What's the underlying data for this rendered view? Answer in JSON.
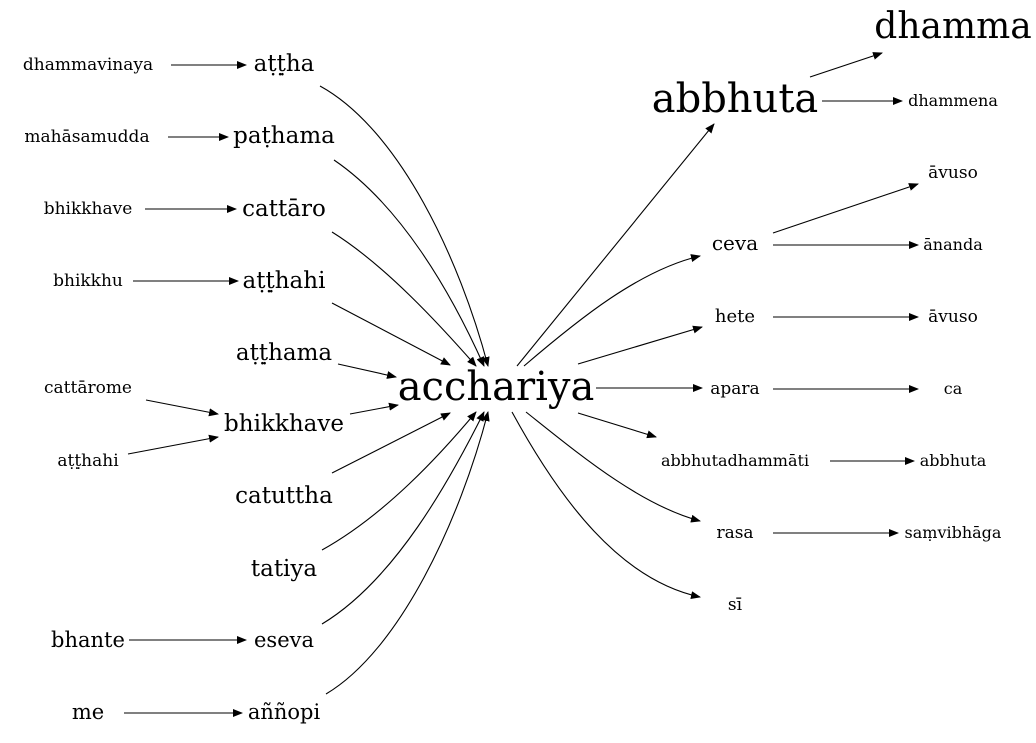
{
  "nodes": {
    "dhammavinaya": "dhammavinaya",
    "attha": "aṭṭ̣ha",
    "mahasamudda": "mahāsamudda",
    "pathama": "paṭhama",
    "bhikkhave_l": "bhikkhave",
    "cattaro": "cattāro",
    "bhikkhu": "bhikkhu",
    "atthahi": "aṭṭ̣hahi",
    "atthama": "aṭṭ̣hama",
    "cattarome": "cattārome",
    "atthahi2": "aṭṭ̣hahi",
    "bhikkhave_c": "bhikkhave",
    "catuttha": "catuttha",
    "tatiya": "tatiya",
    "bhante": "bhante",
    "eseva": "eseva",
    "me": "me",
    "annopi": "aññopi",
    "acchariya": "acchariya",
    "abbhuta": "abbhuta",
    "dhamma": "dhamma",
    "dhammena": "dhammena",
    "ceva": "ceva",
    "avuso1": "āvuso",
    "ananda": "ānanda",
    "hete": "hete",
    "avuso2": "āvuso",
    "apara": "apara",
    "ca": "ca",
    "abbhutadhammati": "abbhutadhammāti",
    "abbhuta2": "abbhuta",
    "rasa": "rasa",
    "samvibhaga": "saṃvibhāga",
    "si": "sī"
  }
}
